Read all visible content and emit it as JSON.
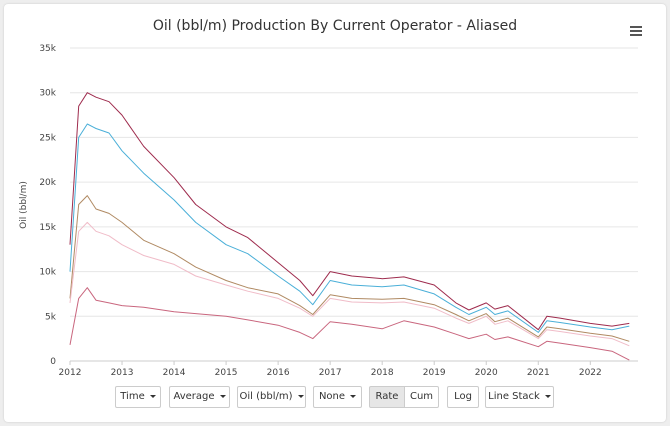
{
  "chart_data": {
    "type": "line",
    "title": "Oil (bbl/m) Production By Current Operator - Aliased",
    "ylabel": "Oil (bbl/m)",
    "xlabel": "",
    "x_ticks": [
      "2012",
      "2013",
      "2014",
      "2015",
      "2016",
      "2017",
      "2018",
      "2019",
      "2020",
      "2021",
      "2022"
    ],
    "y_ticks": [
      "0",
      "5k",
      "10k",
      "15k",
      "20k",
      "25k",
      "30k",
      "35k"
    ],
    "ylim": [
      0,
      35000
    ],
    "xlim": [
      "2012-01",
      "2022-12"
    ],
    "grid": true,
    "legend": "none",
    "series": [
      {
        "color": "#9e2b4d",
        "x": [
          "2012-01",
          "2012-03",
          "2012-05",
          "2012-07",
          "2012-10",
          "2013-01",
          "2013-06",
          "2014-01",
          "2014-06",
          "2015-01",
          "2015-06",
          "2016-01",
          "2016-06",
          "2016-09",
          "2017-01",
          "2017-06",
          "2018-01",
          "2018-06",
          "2019-01",
          "2019-06",
          "2019-09",
          "2020-01",
          "2020-03",
          "2020-06",
          "2021-01",
          "2021-03",
          "2021-06",
          "2022-01",
          "2022-06",
          "2022-10"
        ],
        "values": [
          13000,
          28500,
          30000,
          29500,
          29000,
          27500,
          24000,
          20500,
          17500,
          15000,
          13800,
          11000,
          9000,
          7300,
          10000,
          9500,
          9200,
          9400,
          8500,
          6500,
          5700,
          6500,
          5800,
          6200,
          3500,
          5000,
          4800,
          4200,
          3900,
          4200
        ]
      },
      {
        "color": "#4aafd8",
        "x": [
          "2012-01",
          "2012-03",
          "2012-05",
          "2012-07",
          "2012-10",
          "2013-01",
          "2013-06",
          "2014-01",
          "2014-06",
          "2015-01",
          "2015-06",
          "2016-01",
          "2016-06",
          "2016-09",
          "2017-01",
          "2017-06",
          "2018-01",
          "2018-06",
          "2019-01",
          "2019-06",
          "2019-09",
          "2020-01",
          "2020-03",
          "2020-06",
          "2021-01",
          "2021-03",
          "2021-06",
          "2022-01",
          "2022-06",
          "2022-10"
        ],
        "values": [
          10000,
          25000,
          26500,
          26000,
          25500,
          23500,
          21000,
          18000,
          15500,
          13000,
          12000,
          9500,
          7800,
          6300,
          9000,
          8500,
          8300,
          8500,
          7500,
          6000,
          5200,
          6000,
          5200,
          5600,
          3200,
          4500,
          4300,
          3800,
          3500,
          3900
        ]
      },
      {
        "color": "#b08a63",
        "x": [
          "2012-01",
          "2012-03",
          "2012-05",
          "2012-07",
          "2012-10",
          "2013-01",
          "2013-06",
          "2014-01",
          "2014-06",
          "2015-01",
          "2015-06",
          "2016-01",
          "2016-06",
          "2016-09",
          "2017-01",
          "2017-06",
          "2018-01",
          "2018-06",
          "2019-01",
          "2019-06",
          "2019-09",
          "2020-01",
          "2020-03",
          "2020-06",
          "2021-01",
          "2021-03",
          "2021-06",
          "2022-01",
          "2022-06",
          "2022-10"
        ],
        "values": [
          7000,
          17500,
          18500,
          17000,
          16500,
          15500,
          13500,
          12000,
          10500,
          9000,
          8200,
          7500,
          6200,
          5200,
          7400,
          7000,
          6900,
          7000,
          6300,
          5200,
          4500,
          5300,
          4400,
          4800,
          2700,
          3800,
          3600,
          3100,
          2800,
          2200
        ]
      },
      {
        "color": "#f0bcc8",
        "x": [
          "2012-01",
          "2012-03",
          "2012-05",
          "2012-07",
          "2012-10",
          "2013-01",
          "2013-06",
          "2014-01",
          "2014-06",
          "2015-01",
          "2015-06",
          "2016-01",
          "2016-06",
          "2016-09",
          "2017-01",
          "2017-06",
          "2018-01",
          "2018-06",
          "2019-01",
          "2019-06",
          "2019-09",
          "2020-01",
          "2020-03",
          "2020-06",
          "2021-01",
          "2021-03",
          "2021-06",
          "2022-01",
          "2022-06",
          "2022-10"
        ],
        "values": [
          6500,
          14500,
          15500,
          14500,
          14000,
          13000,
          11800,
          10800,
          9500,
          8500,
          7800,
          7000,
          5900,
          5000,
          7000,
          6600,
          6500,
          6600,
          5900,
          4800,
          4200,
          5000,
          4100,
          4500,
          2500,
          3500,
          3300,
          2800,
          2500,
          1700
        ]
      },
      {
        "color": "#c9667e",
        "x": [
          "2012-01",
          "2012-03",
          "2012-05",
          "2012-07",
          "2012-10",
          "2013-01",
          "2013-06",
          "2014-01",
          "2014-06",
          "2015-01",
          "2015-06",
          "2016-01",
          "2016-06",
          "2016-09",
          "2017-01",
          "2017-06",
          "2018-01",
          "2018-06",
          "2019-01",
          "2019-06",
          "2019-09",
          "2020-01",
          "2020-03",
          "2020-06",
          "2021-01",
          "2021-03",
          "2021-06",
          "2022-01",
          "2022-06",
          "2022-10"
        ],
        "values": [
          1800,
          7000,
          8200,
          6800,
          6500,
          6200,
          6000,
          5500,
          5300,
          5000,
          4600,
          4000,
          3200,
          2500,
          4400,
          4100,
          3600,
          4500,
          3800,
          3000,
          2500,
          3000,
          2400,
          2700,
          1600,
          2200,
          2000,
          1500,
          1100,
          100
        ]
      }
    ]
  },
  "controls": {
    "time_label": "Time",
    "average_label": "Average",
    "oil_label": "Oil (bbl/m)",
    "none_label": "None",
    "rate_label": "Rate",
    "cum_label": "Cum",
    "log_label": "Log",
    "line_stack_label": "Line Stack"
  }
}
